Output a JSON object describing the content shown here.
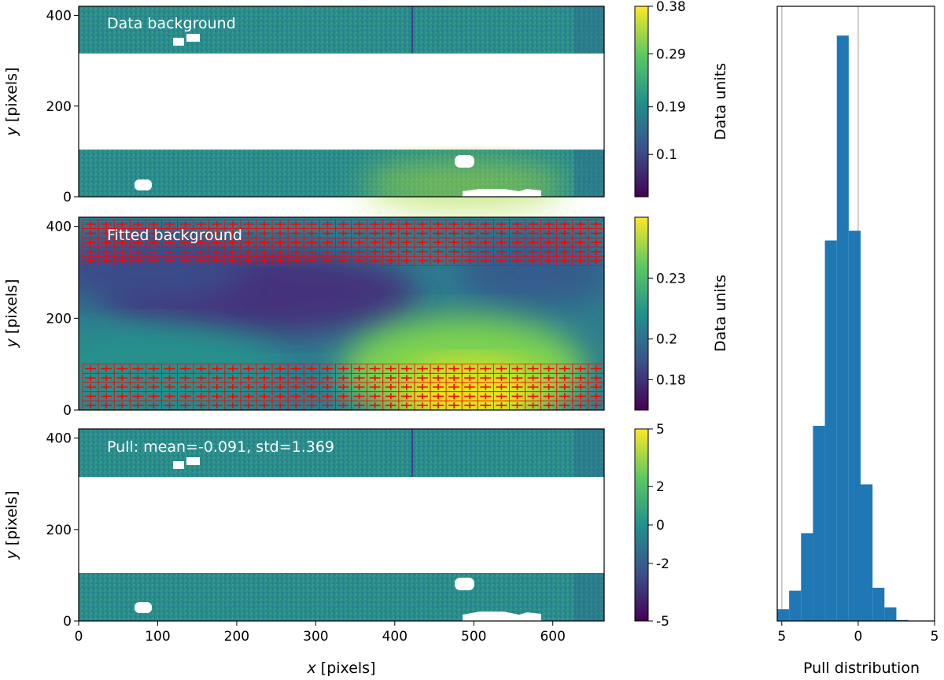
{
  "chart_data": [
    {
      "type": "heatmap",
      "panel": "data",
      "annotation": "Data background",
      "xlim": [
        0,
        665
      ],
      "ylim": [
        0,
        420
      ],
      "yticks": [
        0,
        200,
        400
      ],
      "ylabel": "y [pixels]",
      "valid_y_ranges": [
        [
          0,
          105
        ],
        [
          315,
          420
        ]
      ],
      "masked_blobs": [
        {
          "x": [
            120,
            133
          ],
          "y": [
            332,
            344
          ]
        },
        {
          "x": [
            136,
            152
          ],
          "y": [
            340,
            352
          ]
        },
        {
          "x": [
            70,
            90
          ],
          "y": [
            18,
            36
          ]
        },
        {
          "x": [
            478,
            502
          ],
          "y": [
            64,
            82
          ]
        },
        {
          "x": [
            488,
            582
          ],
          "y": [
            0,
            14
          ]
        }
      ],
      "colormap": "viridis",
      "colorbar": {
        "label": "Data units",
        "ticks": [
          "0.1",
          "0.19",
          "0.29",
          "0.38"
        ],
        "min": 0.02,
        "max": 0.38
      }
    },
    {
      "type": "heatmap",
      "panel": "fitted",
      "annotation": "Fitted background",
      "xlim": [
        0,
        665
      ],
      "ylim": [
        0,
        420
      ],
      "yticks": [
        0,
        200,
        400
      ],
      "ylabel": "y [pixels]",
      "grid_boxes_x_range": [
        5,
        665
      ],
      "grid_boxes_y_ranges": [
        [
          0,
          100
        ],
        [
          315,
          415
        ]
      ],
      "grid_box_size": 20,
      "grid_color": "#ff0000",
      "colormap": "viridis",
      "colorbar": {
        "label": "Data units",
        "ticks": [
          "0.18",
          "0.2",
          "0.23"
        ],
        "min": 0.165,
        "max": 0.26
      }
    },
    {
      "type": "heatmap",
      "panel": "pull",
      "annotation": "Pull: mean=-0.091, std=1.369",
      "xlim": [
        0,
        665
      ],
      "ylim": [
        0,
        420
      ],
      "xticks": [
        0,
        100,
        200,
        300,
        400,
        500,
        600
      ],
      "yticks": [
        0,
        200,
        400
      ],
      "xlabel": "x [pixels]",
      "ylabel": "y [pixels]",
      "colormap": "viridis",
      "colorbar": {
        "label": "",
        "ticks": [
          "-5",
          "-2",
          "0",
          "2",
          "5"
        ],
        "min": -5,
        "max": 5
      }
    },
    {
      "type": "bar",
      "orientation": "horizontal",
      "xlabel": "Pull distribution",
      "axis_ticks": [
        "5",
        "0",
        "5"
      ],
      "pull_range": [
        -5.3,
        5
      ],
      "bins": [
        -5.3,
        -4.52,
        -3.74,
        -2.96,
        -2.18,
        -1.4,
        -0.62,
        0.16,
        0.94,
        1.72,
        2.5,
        3.28,
        4.06,
        4.84
      ],
      "counts": [
        60,
        155,
        450,
        1000,
        1950,
        3000,
        2000,
        700,
        170,
        70,
        5,
        0,
        2
      ],
      "count_max": 3150,
      "vlines": [
        -5,
        0
      ],
      "vline_color": "#bdbdbd",
      "bar_color": "#1f77b4"
    }
  ]
}
